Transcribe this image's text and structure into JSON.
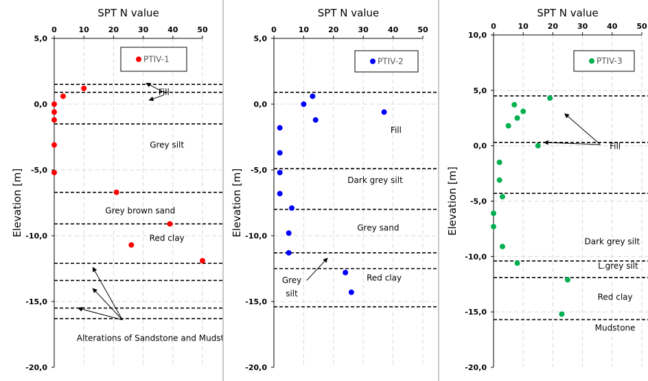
{
  "chart_data": [
    {
      "type": "scatter",
      "xlabel": "SPT N value",
      "ylabel": "Elevation [m]",
      "xlim": [
        0,
        50
      ],
      "ylim": [
        -20,
        5
      ],
      "x_ticks": [
        "0",
        "10",
        "20",
        "30",
        "40",
        "50"
      ],
      "y_ticks": [
        "5,0",
        "0,0",
        "-5,0",
        "-10,0",
        "-15,0",
        "-20,0"
      ],
      "grid": true,
      "legend_position": "top-right",
      "series": [
        {
          "name": "PTIV-1",
          "color": "#ff0000",
          "points": [
            [
              10,
              1.2
            ],
            [
              3,
              0.6
            ],
            [
              0,
              0.0
            ],
            [
              0,
              -0.6
            ],
            [
              0,
              -1.2
            ],
            [
              0,
              -3.1
            ],
            [
              0,
              -5.2
            ],
            [
              21,
              -6.7
            ],
            [
              39,
              -9.1
            ],
            [
              26,
              -10.7
            ],
            [
              50,
              -11.9
            ]
          ]
        }
      ],
      "boundaries": [
        1.5,
        0.9,
        -1.5,
        -6.7,
        -9.1,
        -12.1,
        -13.4,
        -15.5,
        -16.3
      ],
      "annotations": [
        {
          "text": "Fill",
          "x": 37,
          "y": 0.7
        },
        {
          "text": "Grey silt",
          "x": 38,
          "y": -3.3
        },
        {
          "text": "Grey brown sand",
          "x": 29,
          "y": -8.3
        },
        {
          "text": "Red clay",
          "x": 38,
          "y": -10.4
        },
        {
          "text": "Alterations of Sandstone and Mudstone",
          "x": 35,
          "y": -18
        }
      ],
      "arrows": [
        {
          "from": [
            37,
            0.9
          ],
          "to": [
            31,
            1.6
          ]
        },
        {
          "from": [
            37,
            0.7
          ],
          "to": [
            32,
            0.3
          ]
        },
        {
          "from": [
            23,
            -16.4
          ],
          "to": [
            13,
            -12.4
          ]
        },
        {
          "from": [
            23,
            -16.4
          ],
          "to": [
            13,
            -14.0
          ]
        },
        {
          "from": [
            23,
            -16.4
          ],
          "to": [
            8,
            -15.5
          ]
        }
      ]
    },
    {
      "type": "scatter",
      "xlabel": "SPT N value",
      "ylabel": "Elevation [m]",
      "xlim": [
        0,
        50
      ],
      "ylim": [
        -20,
        5
      ],
      "x_ticks": [
        "0",
        "10",
        "20",
        "30",
        "40",
        "50"
      ],
      "y_ticks": [
        "5,0",
        "0,0",
        "-5,0",
        "-10,0",
        "-15,0",
        "-20,0"
      ],
      "grid": true,
      "legend_position": "top-right",
      "series": [
        {
          "name": "PTIV-2",
          "color": "#0000ff",
          "points": [
            [
              13,
              0.6
            ],
            [
              10,
              0.0
            ],
            [
              37,
              -0.6
            ],
            [
              14,
              -1.2
            ],
            [
              2,
              -1.8
            ],
            [
              2,
              -3.7
            ],
            [
              2,
              -5.2
            ],
            [
              2,
              -6.8
            ],
            [
              6,
              -7.9
            ],
            [
              5,
              -9.8
            ],
            [
              5,
              -11.3
            ],
            [
              24,
              -12.8
            ],
            [
              26,
              -14.3
            ]
          ]
        }
      ],
      "boundaries": [
        0.9,
        -4.9,
        -8.0,
        -11.3,
        -12.5,
        -15.4
      ],
      "annotations": [
        {
          "text": "Fill",
          "x": 41,
          "y": -2.2
        },
        {
          "text": "Dark grey silt",
          "x": 34,
          "y": -6.0
        },
        {
          "text": "Grey sand",
          "x": 35,
          "y": -9.6
        },
        {
          "text": "Red clay",
          "x": 37,
          "y": -13.4
        },
        {
          "text": "Grey",
          "x": 6,
          "y": -13.6
        },
        {
          "text": "silt",
          "x": 6,
          "y": -14.6
        }
      ],
      "arrows": [
        {
          "from": [
            11,
            -13.4
          ],
          "to": [
            18,
            -11.7
          ]
        }
      ]
    },
    {
      "type": "scatter",
      "xlabel": "SPT N value",
      "ylabel": "Elevation [m]",
      "xlim": [
        0,
        50
      ],
      "ylim": [
        -20,
        10
      ],
      "x_ticks": [
        "0",
        "10",
        "20",
        "30",
        "40",
        "50"
      ],
      "y_ticks": [
        "10,0",
        "5,0",
        "0,0",
        "-5,0",
        "-10,0",
        "-15,0",
        "-20,0"
      ],
      "grid": true,
      "legend_position": "top-right",
      "series": [
        {
          "name": "PTIV-3",
          "color": "#00b050",
          "points": [
            [
              19,
              4.3
            ],
            [
              7,
              3.7
            ],
            [
              10,
              3.1
            ],
            [
              8,
              2.5
            ],
            [
              5,
              1.8
            ],
            [
              15,
              0.0
            ],
            [
              2,
              -1.5
            ],
            [
              2,
              -3.1
            ],
            [
              3,
              -4.6
            ],
            [
              0,
              -6.1
            ],
            [
              0,
              -7.3
            ],
            [
              3,
              -9.1
            ],
            [
              8,
              -10.6
            ],
            [
              25,
              -12.1
            ],
            [
              23,
              -15.2
            ]
          ]
        }
      ],
      "boundaries": [
        4.5,
        0.3,
        -4.3,
        -10.4,
        -11.9,
        -15.7
      ],
      "annotations": [
        {
          "text": "Fill",
          "x": 41,
          "y": -0.3
        },
        {
          "text": "Dark grey silt",
          "x": 40,
          "y": -8.9
        },
        {
          "text": "L.grey silt",
          "x": 42,
          "y": -11.1
        },
        {
          "text": "Red clay",
          "x": 41,
          "y": -13.9
        },
        {
          "text": "Mudstone",
          "x": 41,
          "y": -16.7
        }
      ],
      "arrows": [
        {
          "from": [
            36,
            0.1
          ],
          "to": [
            24,
            2.9
          ]
        },
        {
          "from": [
            36,
            0.1
          ],
          "to": [
            17,
            0.3
          ]
        }
      ]
    }
  ]
}
